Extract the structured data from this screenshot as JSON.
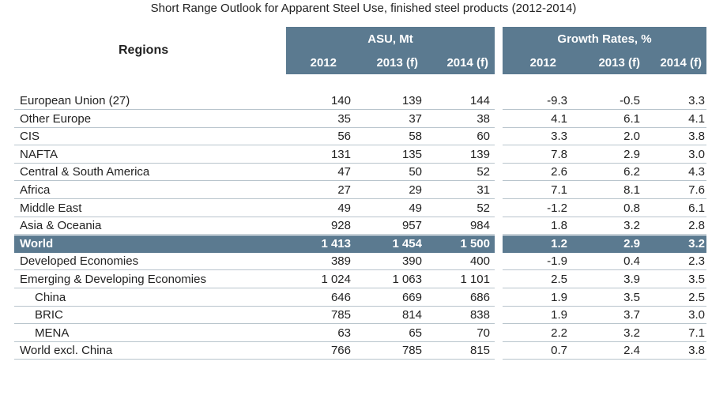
{
  "chart_data": {
    "type": "table",
    "title": "Short Range Outlook for Apparent Steel Use, finished steel products (2012-2014)",
    "row_header": "Regions",
    "column_groups": [
      {
        "name": "ASU, Mt",
        "columns": [
          "2012",
          "2013 (f)",
          "2014 (f)"
        ]
      },
      {
        "name": "Growth Rates, %",
        "columns": [
          "2012",
          "2013 (f)",
          "2014 (f)"
        ]
      }
    ],
    "rows": [
      {
        "label": "European Union (27)",
        "asu": [
          "140",
          "139",
          "144"
        ],
        "growth": [
          "-9.3",
          "-0.5",
          "3.3"
        ]
      },
      {
        "label": "Other Europe",
        "asu": [
          "35",
          "37",
          "38"
        ],
        "growth": [
          "4.1",
          "6.1",
          "4.1"
        ]
      },
      {
        "label": "CIS",
        "asu": [
          "56",
          "58",
          "60"
        ],
        "growth": [
          "3.3",
          "2.0",
          "3.8"
        ]
      },
      {
        "label": "NAFTA",
        "asu": [
          "131",
          "135",
          "139"
        ],
        "growth": [
          "7.8",
          "2.9",
          "3.0"
        ]
      },
      {
        "label": "Central & South America",
        "asu": [
          "47",
          "50",
          "52"
        ],
        "growth": [
          "2.6",
          "6.2",
          "4.3"
        ]
      },
      {
        "label": "Africa",
        "asu": [
          "27",
          "29",
          "31"
        ],
        "growth": [
          "7.1",
          "8.1",
          "7.6"
        ]
      },
      {
        "label": "Middle East",
        "asu": [
          "49",
          "49",
          "52"
        ],
        "growth": [
          "-1.2",
          "0.8",
          "6.1"
        ]
      },
      {
        "label": "Asia & Oceania",
        "asu": [
          "928",
          "957",
          "984"
        ],
        "growth": [
          "1.8",
          "3.2",
          "2.8"
        ]
      },
      {
        "label": "World",
        "asu": [
          "1 413",
          "1 454",
          "1 500"
        ],
        "growth": [
          "1.2",
          "2.9",
          "3.2"
        ],
        "highlight": true
      },
      {
        "label": "Developed Economies",
        "asu": [
          "389",
          "390",
          "400"
        ],
        "growth": [
          "-1.9",
          "0.4",
          "2.3"
        ]
      },
      {
        "label": "Emerging & Developing Economies",
        "asu": [
          "1 024",
          "1 063",
          "1 101"
        ],
        "growth": [
          "2.5",
          "3.9",
          "3.5"
        ]
      },
      {
        "label": "China",
        "asu": [
          "646",
          "669",
          "686"
        ],
        "growth": [
          "1.9",
          "3.5",
          "2.5"
        ],
        "indent": true
      },
      {
        "label": "BRIC",
        "asu": [
          "785",
          "814",
          "838"
        ],
        "growth": [
          "1.9",
          "3.7",
          "3.0"
        ],
        "indent": true
      },
      {
        "label": "MENA",
        "asu": [
          "63",
          "65",
          "70"
        ],
        "growth": [
          "2.2",
          "3.2",
          "7.1"
        ],
        "indent": true
      },
      {
        "label": "World excl. China",
        "asu": [
          "766",
          "785",
          "815"
        ],
        "growth": [
          "0.7",
          "2.4",
          "3.8"
        ]
      }
    ]
  },
  "colors": {
    "header_band": "#5b7a90",
    "header_text": "#ffffff",
    "row_rule": "#b8c4cc"
  }
}
